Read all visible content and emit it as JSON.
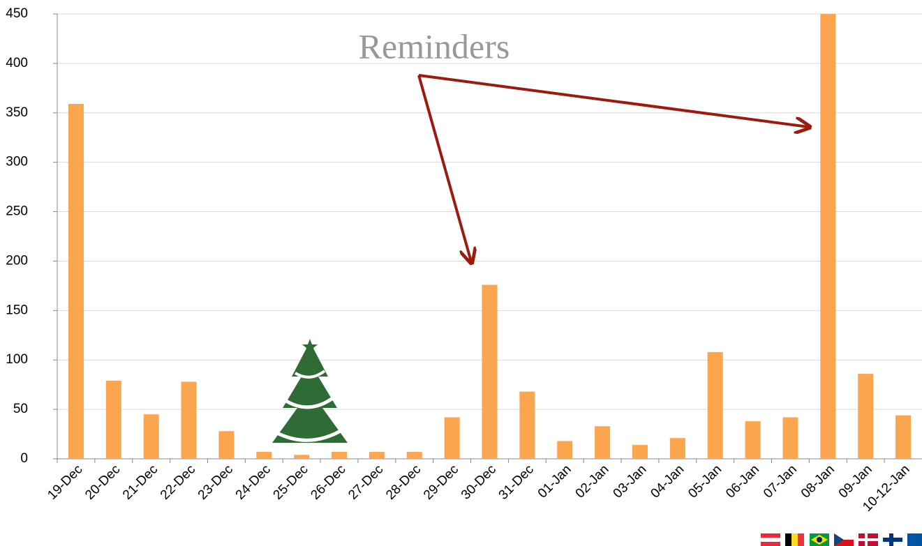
{
  "chart_data": {
    "type": "bar",
    "annotation": "Reminders",
    "categories": [
      "19-Dec",
      "20-Dec",
      "21-Dec",
      "22-Dec",
      "23-Dec",
      "24-Dec",
      "25-Dec",
      "26-Dec",
      "27-Dec",
      "28-Dec",
      "29-Dec",
      "30-Dec",
      "31-Dec",
      "01-Jan",
      "02-Jan",
      "03-Jan",
      "04-Jan",
      "05-Jan",
      "06-Jan",
      "07-Jan",
      "08-Jan",
      "09-Jan",
      "10-12-Jan"
    ],
    "values": [
      359,
      79,
      45,
      78,
      28,
      7,
      4,
      7,
      7,
      7,
      42,
      176,
      68,
      18,
      33,
      14,
      21,
      108,
      38,
      42,
      450,
      86,
      44
    ],
    "color": "#fba54f",
    "ylim": [
      0,
      450
    ],
    "yticks": [
      0,
      50,
      100,
      150,
      200,
      250,
      300,
      350,
      400,
      450
    ],
    "grid": true
  }
}
